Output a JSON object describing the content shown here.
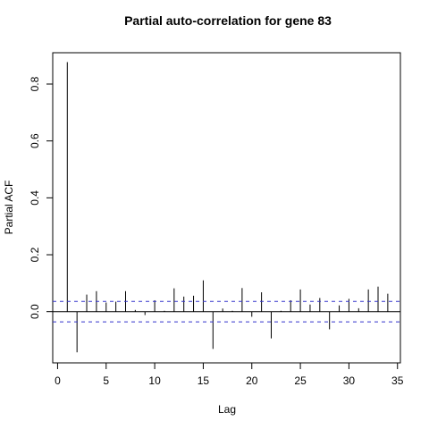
{
  "chart_data": {
    "type": "bar",
    "title": "Partial auto-correlation for gene 83",
    "xlabel": "Lag",
    "ylabel": "Partial ACF",
    "xlim": [
      -0.5,
      35.3
    ],
    "ylim": [
      -0.18,
      0.91
    ],
    "xticks": [
      0,
      5,
      10,
      15,
      20,
      25,
      30,
      35
    ],
    "yticks": [
      0.0,
      0.2,
      0.4,
      0.6,
      0.8
    ],
    "lags": [
      1,
      2,
      3,
      4,
      5,
      6,
      7,
      8,
      9,
      10,
      11,
      12,
      13,
      14,
      15,
      16,
      17,
      18,
      19,
      20,
      21,
      22,
      23,
      24,
      25,
      26,
      27,
      28,
      29,
      30,
      31,
      32,
      33,
      34
    ],
    "values": [
      0.877,
      -0.143,
      0.06,
      0.072,
      0.032,
      0.035,
      0.072,
      0.006,
      -0.012,
      0.04,
      0.003,
      0.082,
      0.053,
      0.056,
      0.11,
      -0.131,
      0.011,
      0.003,
      0.083,
      -0.018,
      0.068,
      -0.094,
      0.003,
      0.04,
      0.078,
      0.025,
      0.048,
      -0.062,
      0.022,
      0.045,
      0.012,
      0.078,
      0.088,
      0.063
    ],
    "conf_level": 0.036,
    "conf_color": "#3333cc",
    "grid": false
  }
}
